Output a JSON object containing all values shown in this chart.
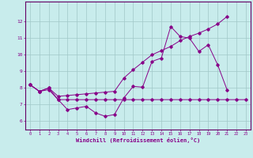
{
  "xlabel": "Windchill (Refroidissement éolien,°C)",
  "background_color": "#c8ecec",
  "grid_color": "#a0c8c8",
  "line_color": "#880088",
  "spine_color": "#660066",
  "xlim_min": -0.5,
  "xlim_max": 23.5,
  "ylim_min": 5.5,
  "ylim_max": 13.2,
  "yticks": [
    6,
    7,
    8,
    9,
    10,
    11,
    12
  ],
  "xtick_labels": [
    "0",
    "1",
    "2",
    "3",
    "4",
    "5",
    "6",
    "7",
    "8",
    "9",
    "10",
    "11",
    "12",
    "13",
    "14",
    "15",
    "16",
    "17",
    "18",
    "19",
    "20",
    "21",
    "22",
    "23"
  ],
  "line1_x": [
    0,
    1,
    2,
    3,
    4,
    5,
    6,
    7,
    8,
    9,
    10,
    11,
    12,
    13,
    14,
    15,
    16,
    17,
    18,
    19,
    20,
    21
  ],
  "line1_y": [
    8.2,
    7.8,
    8.0,
    7.3,
    6.7,
    6.8,
    6.9,
    6.5,
    6.3,
    6.4,
    7.4,
    8.1,
    8.05,
    9.6,
    9.8,
    11.7,
    11.1,
    11.0,
    10.2,
    10.6,
    9.4,
    7.9
  ],
  "line2_x": [
    0,
    1,
    2,
    3,
    4,
    5,
    6,
    7,
    8,
    9,
    10,
    11,
    12,
    13,
    14,
    15,
    16,
    17,
    18,
    19,
    20,
    21
  ],
  "line2_y": [
    8.2,
    7.8,
    8.0,
    7.5,
    7.55,
    7.6,
    7.65,
    7.7,
    7.75,
    7.8,
    8.6,
    9.1,
    9.55,
    10.0,
    10.25,
    10.5,
    10.85,
    11.1,
    11.3,
    11.55,
    11.85,
    12.3
  ],
  "line3_x": [
    0,
    1,
    2,
    3,
    4,
    5,
    6,
    7,
    8,
    9,
    10,
    11,
    12,
    13,
    14,
    15,
    16,
    17,
    18,
    19,
    20,
    21,
    22,
    23
  ],
  "line3_y": [
    8.2,
    7.8,
    7.9,
    7.3,
    7.3,
    7.3,
    7.3,
    7.3,
    7.3,
    7.3,
    7.3,
    7.3,
    7.3,
    7.3,
    7.3,
    7.3,
    7.3,
    7.3,
    7.3,
    7.3,
    7.3,
    7.3,
    7.3,
    7.3
  ]
}
